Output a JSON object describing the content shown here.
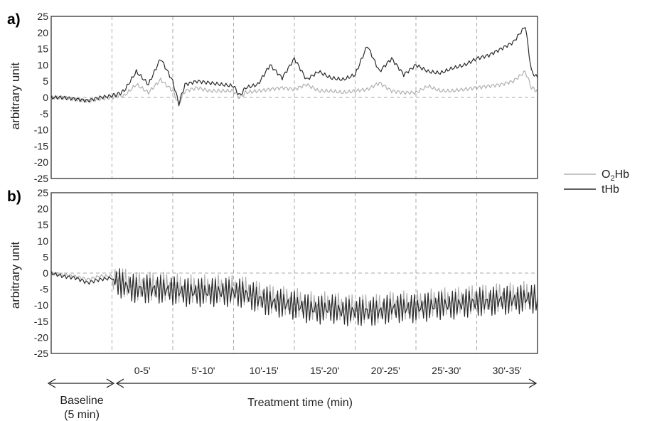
{
  "chart_data": [
    {
      "type": "line",
      "panel_label": "a)",
      "ylabel": "arbitrary unit",
      "ylim": [
        -25,
        25
      ],
      "yticks": [
        -25,
        -20,
        -15,
        -10,
        -5,
        0,
        5,
        10,
        15,
        20,
        25
      ],
      "xlim": [
        0,
        40
      ],
      "grid": "vertical dashed at segment boundaries, horizontal dashed at 0",
      "series": [
        {
          "name": "O2Hb",
          "color": "#b0b0b0",
          "x": [
            0,
            1,
            2,
            3,
            4,
            5,
            5.5,
            6,
            7,
            8,
            9,
            10,
            10.5,
            11,
            12,
            13,
            14,
            15,
            15.5,
            16,
            17,
            18,
            19,
            20,
            21,
            22,
            23,
            24,
            25,
            26,
            27,
            28,
            29,
            30,
            31,
            32,
            33,
            34,
            35,
            36,
            37,
            38,
            39,
            39.5,
            40
          ],
          "y": [
            0,
            0,
            -0.5,
            -1,
            -0.5,
            0,
            0.5,
            0.5,
            4,
            1.5,
            5.5,
            2,
            -2,
            2,
            3,
            2,
            2,
            2,
            0,
            1.5,
            2,
            2.5,
            3,
            2.5,
            4,
            2,
            2,
            1.5,
            2,
            2.5,
            4.5,
            2,
            1.5,
            1.5,
            3.5,
            2,
            2,
            2.5,
            3,
            3.5,
            4,
            5,
            8,
            3,
            2
          ]
        },
        {
          "name": "tHb",
          "color": "#2a2a2a",
          "x": [
            0,
            1,
            2,
            3,
            4,
            5,
            5.5,
            6,
            7,
            8,
            9,
            10,
            10.5,
            11,
            12,
            13,
            14,
            15,
            15.5,
            16,
            17,
            18,
            19,
            20,
            21,
            22,
            23,
            24,
            25,
            26,
            27,
            28,
            29,
            30,
            31,
            32,
            33,
            34,
            35,
            36,
            37,
            38,
            39,
            39.5,
            40
          ],
          "y": [
            0,
            0,
            -0.5,
            -1,
            0,
            0.5,
            1,
            2,
            8,
            4,
            12,
            5,
            -2,
            4,
            5,
            4.5,
            4,
            3.5,
            0.5,
            3,
            4,
            10,
            6,
            12,
            5.5,
            8,
            6,
            5.5,
            7,
            16,
            8,
            12,
            7,
            10,
            8,
            7.5,
            9,
            10,
            12,
            13,
            15,
            17,
            22,
            8,
            6
          ]
        }
      ]
    },
    {
      "type": "line",
      "panel_label": "b)",
      "ylabel": "arbitrary unit",
      "ylim": [
        -25,
        25
      ],
      "yticks": [
        -25,
        -20,
        -15,
        -10,
        -5,
        0,
        5,
        10,
        15,
        20,
        25
      ],
      "xlim": [
        0,
        40
      ],
      "grid": "vertical dashed at segment boundaries, horizontal dashed at 0",
      "series": [
        {
          "name": "O2Hb",
          "color": "#b0b0b0",
          "x": [
            0,
            1,
            2,
            3,
            4,
            5,
            6,
            7,
            8,
            9,
            10,
            11,
            12,
            13,
            14,
            15,
            16,
            17,
            18,
            19,
            20,
            21,
            22,
            23,
            24,
            25,
            26,
            27,
            28,
            29,
            30,
            31,
            32,
            33,
            34,
            35,
            36,
            37,
            38,
            39,
            40
          ],
          "y": [
            0,
            -0.5,
            -1,
            -2,
            -1,
            -1,
            -3,
            -4,
            -4,
            -4,
            -4.5,
            -5,
            -5,
            -5,
            -5,
            -5,
            -5.5,
            -7,
            -8,
            -8.5,
            -9,
            -10,
            -10.5,
            -10,
            -11,
            -11,
            -11,
            -11,
            -10,
            -10,
            -10,
            -9.5,
            -9,
            -9,
            -8.5,
            -8,
            -8,
            -7.5,
            -7.5,
            -7,
            -7
          ]
        },
        {
          "name": "tHb",
          "color": "#2a2a2a",
          "x": [
            0,
            1,
            2,
            3,
            4,
            5,
            6,
            7,
            8,
            9,
            10,
            11,
            12,
            13,
            14,
            15,
            16,
            17,
            18,
            19,
            20,
            21,
            22,
            23,
            24,
            25,
            26,
            27,
            28,
            29,
            30,
            31,
            32,
            33,
            34,
            35,
            36,
            37,
            38,
            39,
            40
          ],
          "y": [
            0,
            -1,
            -1.5,
            -3,
            -2,
            -1.5,
            -4,
            -5,
            -5,
            -5,
            -5.5,
            -6,
            -6,
            -6,
            -6,
            -6,
            -6.5,
            -8,
            -9,
            -9.5,
            -10,
            -11,
            -11.5,
            -11,
            -12,
            -12,
            -12,
            -12,
            -11,
            -11,
            -11,
            -10.5,
            -10,
            -10,
            -9.5,
            -9,
            -9,
            -8.5,
            -8.5,
            -8,
            -8
          ]
        }
      ]
    }
  ],
  "legend": {
    "placement": "right",
    "items": [
      {
        "name_main": "O",
        "name_sub": "2",
        "name_rest": "Hb",
        "color": "#b0b0b0"
      },
      {
        "name_main": "tHb",
        "color": "#2a2a2a"
      }
    ]
  },
  "x_axis": {
    "segments": [
      "0-5'",
      "5'-10'",
      "10'-15'",
      "15'-20'",
      "20'-25'",
      "25'-30'",
      "30'-35'"
    ],
    "baseline_label": "Baseline",
    "baseline_sublabel": "(5 min)",
    "treatment_label": "Treatment time (min)"
  }
}
